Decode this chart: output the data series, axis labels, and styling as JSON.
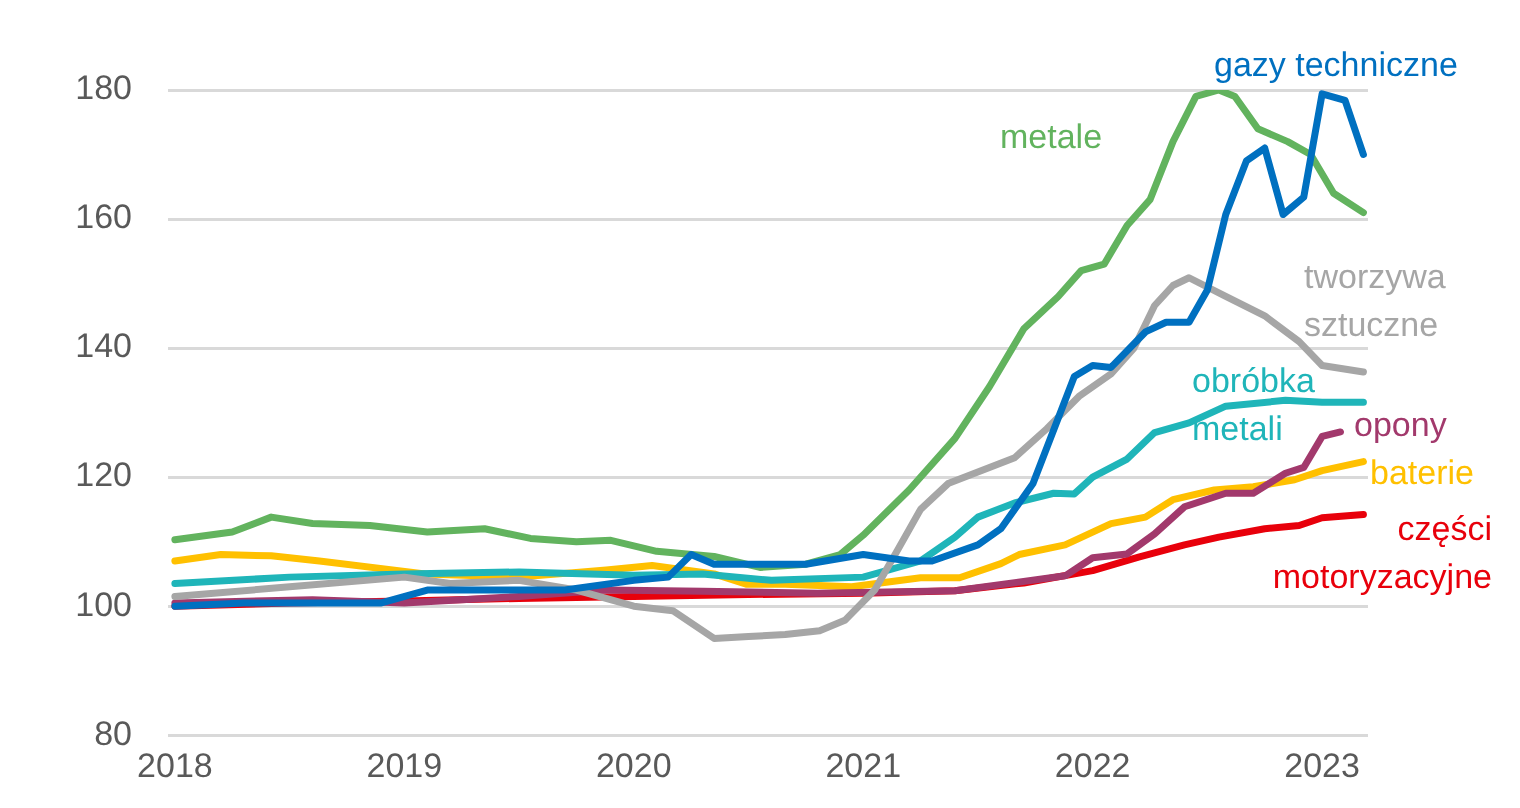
{
  "chart_data": {
    "type": "line",
    "xlim": [
      2017.97,
      2023.2
    ],
    "xticks": [
      2018,
      2019,
      2020,
      2021,
      2022,
      2023
    ],
    "ylim": [
      80,
      180
    ],
    "yticks": [
      80,
      100,
      120,
      140,
      160,
      180
    ],
    "grid": "y",
    "marker": "none",
    "series": [
      {
        "name": "gazy techniczne",
        "color": "#0070c0",
        "x": [
          2018.0,
          2018.3,
          2018.6,
          2018.9,
          2019.1,
          2019.4,
          2019.7,
          2020.0,
          2020.15,
          2020.25,
          2020.35,
          2020.55,
          2020.75,
          2021.0,
          2021.2,
          2021.3,
          2021.5,
          2021.6,
          2021.74,
          2021.92,
          2022.0,
          2022.08,
          2022.23,
          2022.32,
          2022.42,
          2022.5,
          2022.58,
          2022.67,
          2022.75,
          2022.83,
          2022.92,
          2023.0,
          2023.1,
          2023.18
        ],
        "values": [
          100,
          100.5,
          100.5,
          100.5,
          102.5,
          102.5,
          102.5,
          104,
          104.5,
          108,
          106.5,
          106.5,
          106.5,
          108,
          107,
          107,
          109.5,
          112,
          119,
          135.6,
          137.3,
          137,
          142.5,
          144,
          144,
          149,
          160.7,
          169,
          171,
          160.7,
          163.4,
          179.4,
          178.4,
          170
        ]
      },
      {
        "name": "metale",
        "color": "#62b35e",
        "x": [
          2018.0,
          2018.25,
          2018.42,
          2018.6,
          2018.85,
          2019.1,
          2019.35,
          2019.55,
          2019.75,
          2019.9,
          2020.1,
          2020.35,
          2020.55,
          2020.75,
          2020.9,
          2021.0,
          2021.2,
          2021.4,
          2021.55,
          2021.7,
          2021.85,
          2021.95,
          2022.05,
          2022.15,
          2022.25,
          2022.35,
          2022.45,
          2022.55,
          2022.62,
          2022.72,
          2022.85,
          2022.95,
          2023.05,
          2023.18
        ],
        "values": [
          110.3,
          111.5,
          113.8,
          112.8,
          112.5,
          111.5,
          112,
          110.5,
          110,
          110.2,
          108.5,
          107.7,
          106,
          106.5,
          108,
          111,
          118,
          126,
          134,
          143,
          148,
          152,
          153,
          159,
          163,
          172,
          179,
          180,
          179,
          174,
          172,
          170,
          164,
          161
        ]
      },
      {
        "name": "tworzywa sztuczne",
        "color": "#a6a6a6",
        "x": [
          2018.0,
          2018.5,
          2019.0,
          2019.2,
          2019.5,
          2019.75,
          2020.0,
          2020.17,
          2020.35,
          2020.5,
          2020.66,
          2020.81,
          2020.92,
          2021.05,
          2021.15,
          2021.25,
          2021.37,
          2021.66,
          2021.8,
          2021.94,
          2022.08,
          2022.18,
          2022.27,
          2022.35,
          2022.42,
          2022.58,
          2022.75,
          2022.9,
          2023.0,
          2023.18
        ],
        "values": [
          101.5,
          103,
          104.5,
          103.5,
          104,
          102.5,
          100,
          99.3,
          95,
          95.3,
          95.6,
          96.2,
          97.8,
          102.5,
          108.7,
          115,
          119,
          123,
          127.5,
          132.5,
          136,
          140,
          146.6,
          149.7,
          150.9,
          148,
          145,
          141,
          137.3,
          136.3
        ]
      },
      {
        "name": "obróbka metali",
        "color": "#1fb5b9",
        "x": [
          2018.0,
          2018.5,
          2019.0,
          2019.5,
          2020.0,
          2020.3,
          2020.6,
          2021.0,
          2021.25,
          2021.4,
          2021.5,
          2021.66,
          2021.83,
          2021.92,
          2022.0,
          2022.15,
          2022.27,
          2022.42,
          2022.58,
          2022.84,
          2023.0,
          2023.18
        ],
        "values": [
          103.5,
          104.5,
          105,
          105.3,
          104.8,
          105,
          104,
          104.5,
          107,
          110.7,
          113.8,
          116,
          117.5,
          117.4,
          120,
          122.8,
          126.9,
          128.4,
          131,
          131.9,
          131.6,
          131.6
        ]
      },
      {
        "name": "opony",
        "color": "#a2396c",
        "x": [
          2018.0,
          2018.6,
          2019.0,
          2019.5,
          2019.88,
          2020.3,
          2020.8,
          2021.4,
          2021.88,
          2022.0,
          2022.15,
          2022.27,
          2022.4,
          2022.58,
          2022.7,
          2022.84,
          2022.92,
          2023.0,
          2023.08
        ],
        "values": [
          100.5,
          101,
          100.5,
          101.5,
          102.5,
          102.3,
          102,
          102.4,
          104.7,
          107.5,
          108.1,
          111.2,
          115.4,
          117.5,
          117.5,
          120.6,
          121.5,
          126.3,
          127
        ]
      },
      {
        "name": "baterie",
        "color": "#ffc000",
        "x": [
          2018.0,
          2018.2,
          2018.42,
          2018.63,
          2019.09,
          2019.5,
          2019.88,
          2020.08,
          2020.35,
          2020.49,
          2020.66,
          2020.95,
          2021.25,
          2021.42,
          2021.6,
          2021.68,
          2021.88,
          2022.08,
          2022.23,
          2022.35,
          2022.53,
          2022.7,
          2022.88,
          2023.0,
          2023.18
        ],
        "values": [
          107,
          108,
          107.8,
          107,
          105,
          104.5,
          105.6,
          106.3,
          105,
          103.4,
          103.4,
          103,
          104.4,
          104.4,
          106.6,
          108,
          109.5,
          112.8,
          113.8,
          116.5,
          118,
          118.5,
          119.6,
          121,
          122.4
        ]
      },
      {
        "name": "części motoryzacyjne",
        "color": "#e8000b",
        "x": [
          2018.0,
          2018.5,
          2019.0,
          2019.5,
          2020.0,
          2020.5,
          2021.0,
          2021.4,
          2021.7,
          2022.0,
          2022.2,
          2022.4,
          2022.55,
          2022.75,
          2022.9,
          2023.0,
          2023.18
        ],
        "values": [
          100,
          100.5,
          100.8,
          101.2,
          101.5,
          101.8,
          102,
          102.4,
          103.6,
          105.5,
          107.6,
          109.5,
          110.7,
          112,
          112.5,
          113.7,
          114.2
        ]
      }
    ]
  }
}
